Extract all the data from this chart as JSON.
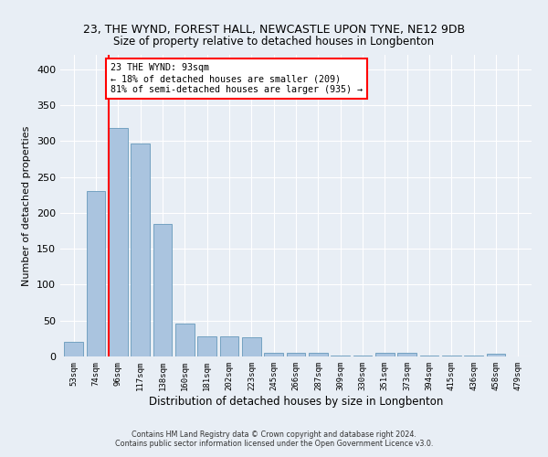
{
  "title": "23, THE WYND, FOREST HALL, NEWCASTLE UPON TYNE, NE12 9DB",
  "subtitle": "Size of property relative to detached houses in Longbenton",
  "xlabel": "Distribution of detached houses by size in Longbenton",
  "ylabel": "Number of detached properties",
  "bar_color": "#aac4df",
  "bar_edge_color": "#6699bb",
  "categories": [
    "53sqm",
    "74sqm",
    "96sqm",
    "117sqm",
    "138sqm",
    "160sqm",
    "181sqm",
    "202sqm",
    "223sqm",
    "245sqm",
    "266sqm",
    "287sqm",
    "309sqm",
    "330sqm",
    "351sqm",
    "373sqm",
    "394sqm",
    "415sqm",
    "436sqm",
    "458sqm",
    "479sqm"
  ],
  "values": [
    20,
    230,
    318,
    297,
    184,
    46,
    28,
    28,
    27,
    5,
    5,
    5,
    1,
    1,
    5,
    5,
    1,
    1,
    1,
    4,
    0
  ],
  "annotation_text": "23 THE WYND: 93sqm\n← 18% of detached houses are smaller (209)\n81% of semi-detached houses are larger (935) →",
  "annotation_box_color": "white",
  "annotation_box_edge": "red",
  "vline_color": "red",
  "vline_x": 2.0,
  "ylim": [
    0,
    420
  ],
  "yticks": [
    0,
    50,
    100,
    150,
    200,
    250,
    300,
    350,
    400
  ],
  "footer": "Contains HM Land Registry data © Crown copyright and database right 2024.\nContains public sector information licensed under the Open Government Licence v3.0.",
  "bg_color": "#e8eef5",
  "grid_color": "white"
}
